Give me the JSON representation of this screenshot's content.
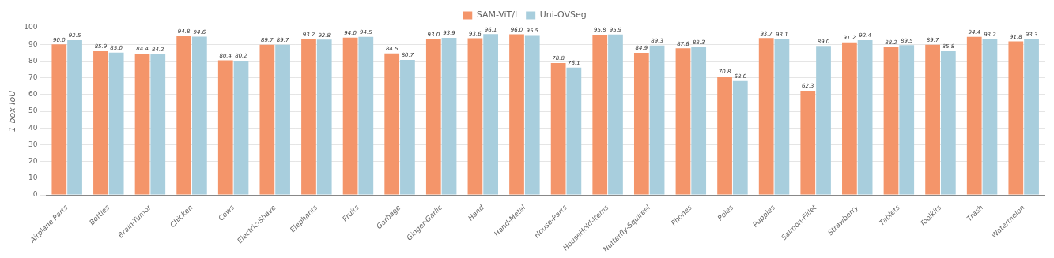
{
  "chart_data": {
    "type": "bar",
    "categories": [
      "Airplane Parts",
      "Bottles",
      "Brain-Tumor",
      "Chicken",
      "Cows",
      "Electric-Shave",
      "Elephants",
      "Fruits",
      "Garbage",
      "Ginger-Garlic",
      "Hand",
      "Hand-Metal",
      "House-Parts",
      "HouseHold-Items",
      "Nutterfly-Squireel",
      "Phones",
      "Poles",
      "Puppies",
      "Salmon-Fillet",
      "Strawberry",
      "Tablets",
      "Toolkits",
      "Trash",
      "Watermelon"
    ],
    "series": [
      {
        "name": "SAM-ViT/L",
        "color": "#F4956A",
        "values": [
          90.0,
          85.9,
          84.4,
          94.8,
          80.4,
          89.7,
          93.2,
          94.0,
          84.5,
          93.0,
          93.6,
          96.0,
          78.8,
          95.8,
          84.9,
          87.6,
          70.8,
          93.7,
          62.3,
          91.2,
          88.2,
          89.7,
          94.4,
          91.8
        ],
        "value_labels": [
          "90.0",
          "85.9",
          "84.4",
          "94.8",
          "80.4",
          "89.7",
          "93.2",
          "94.0",
          "84.5",
          "93.0",
          "93.6",
          "96.0",
          "78.8",
          "95.8",
          "84.9",
          "87.6",
          "70.8",
          "93.7",
          "62.3",
          "91.2",
          "88.2",
          "89.7",
          "94.4",
          "91.8"
        ]
      },
      {
        "name": "Uni-OVSeg",
        "color": "#A8CEDD",
        "values": [
          92.5,
          85.0,
          84.2,
          94.6,
          80.2,
          89.7,
          92.8,
          94.5,
          80.7,
          93.9,
          96.1,
          95.5,
          76.1,
          95.9,
          89.3,
          88.3,
          68.0,
          93.1,
          89.0,
          92.4,
          89.5,
          85.8,
          93.2,
          93.3
        ],
        "value_labels": [
          "92.5",
          "85.0",
          "84.2",
          "94.6",
          "80.2",
          "89.7",
          "92.8",
          "94.5",
          "80.7",
          "93.9",
          "96.1",
          "95.5",
          "76.1",
          "95.9",
          "89.3",
          "88.3",
          "68.0",
          "93.1",
          "89.0",
          "92.4",
          "89.5",
          "85.8",
          "93.2",
          "93.3"
        ]
      }
    ],
    "ylabel": "1-box IoU",
    "ylim": [
      0,
      100
    ],
    "yticks": [
      0,
      10,
      20,
      30,
      40,
      50,
      60,
      70,
      80,
      90,
      100
    ],
    "grid": true,
    "legend": "top",
    "data_labels": true
  }
}
